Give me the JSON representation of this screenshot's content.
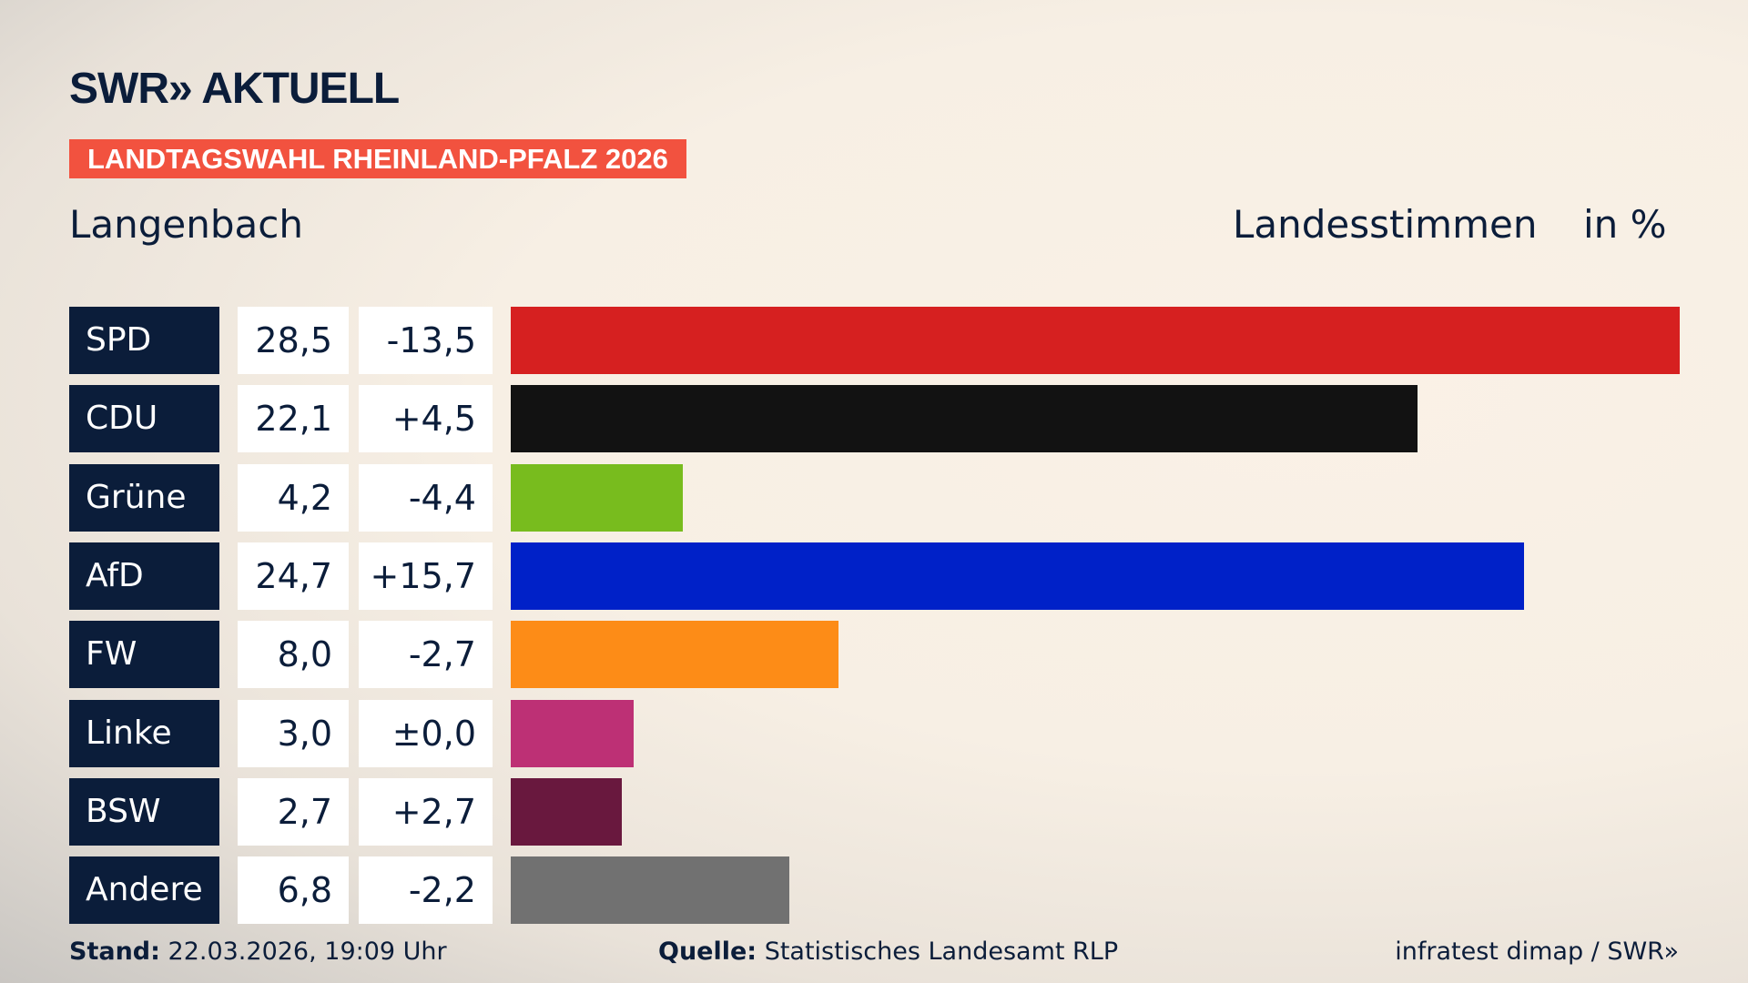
{
  "header": {
    "logo": "SWR» AKTUELL",
    "banner": "LANDTAGSWAHL RHEINLAND-PFALZ 2026",
    "place": "Langenbach",
    "vote_type": "Landesstimmen",
    "unit": "in %"
  },
  "chart_data": {
    "type": "bar",
    "orientation": "horizontal",
    "unit": "in %",
    "categories": [
      "SPD",
      "CDU",
      "Grüne",
      "AfD",
      "FW",
      "Linke",
      "BSW",
      "Andere"
    ],
    "values": [
      28.5,
      22.1,
      4.2,
      24.7,
      8.0,
      3.0,
      2.7,
      6.8
    ],
    "value_labels": [
      "28,5",
      "22,1",
      "4,2",
      "24,7",
      "8,0",
      "3,0",
      "2,7",
      "6,8"
    ],
    "diff_labels": [
      "-13,5",
      "+4,5",
      "-4,4",
      "+15,7",
      "-2,7",
      "±0,0",
      "+2,7",
      "-2,2"
    ],
    "colors": [
      "#d62020",
      "#121212",
      "#78bc1e",
      "#0021c8",
      "#fd8c17",
      "#bd3075",
      "#69183e",
      "#717171"
    ]
  },
  "footer": {
    "stand_label": "Stand:",
    "stand_value": "22.03.2026, 19:09 Uhr",
    "source_label": "Quelle:",
    "source_value": "Statistisches Landesamt RLP",
    "credit": "infratest dimap / SWR»"
  }
}
